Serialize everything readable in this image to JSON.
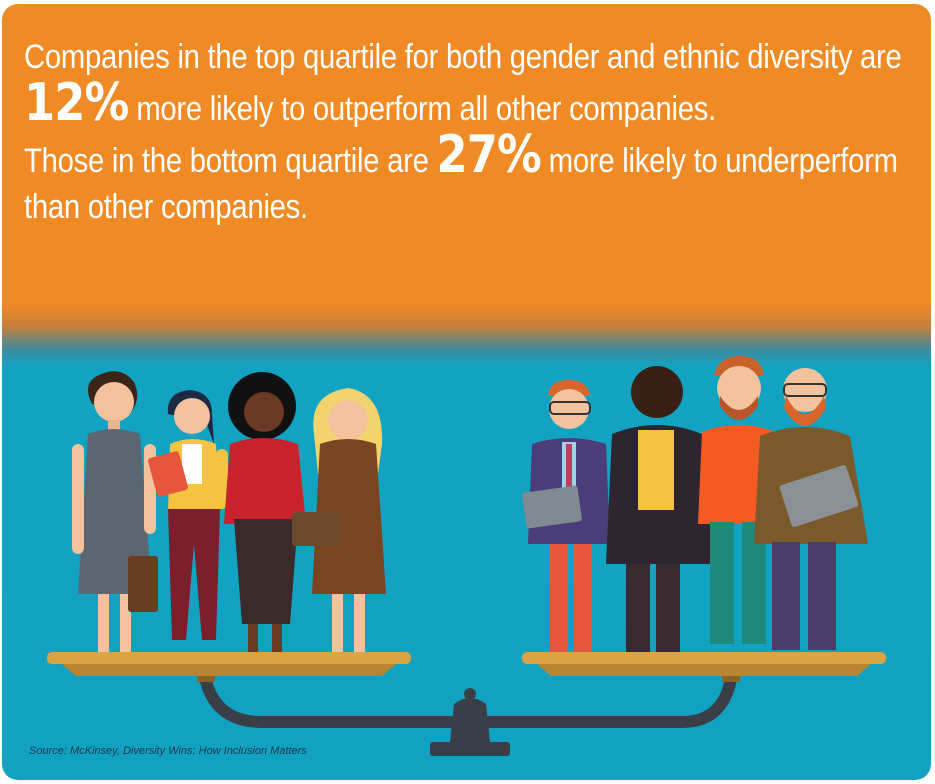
{
  "headline": {
    "line1_pre": "Companies in the top quartile for both gender and ethnic diversity are ",
    "line1_stat": "12%",
    "line1_post": " more likely to outperform all other companies.",
    "line2_pre": "Those in the bottom quartile are ",
    "line2_stat": "27%",
    "line2_post": " more likely to underperform than other companies."
  },
  "source": "Source: McKinsey, Diversity Wins: How Inclusion Matters",
  "colors": {
    "orange": "#f08a24",
    "teal": "#12a2c2",
    "scale_pan": "#d9a441",
    "beam": "#3a3f47"
  }
}
